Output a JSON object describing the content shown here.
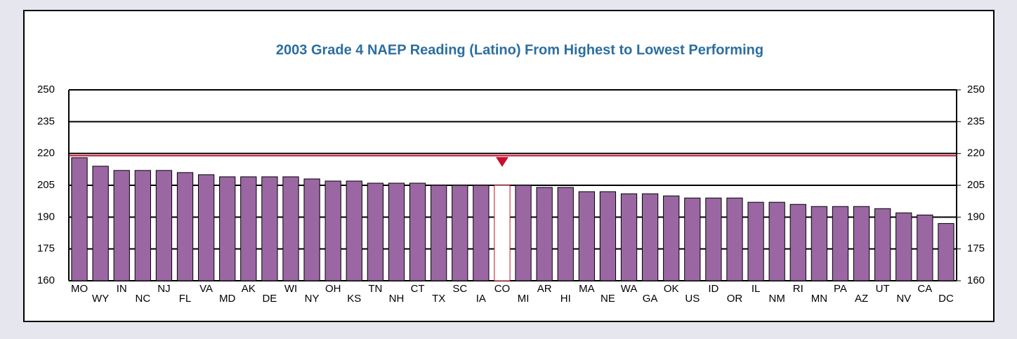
{
  "chart_data": {
    "type": "bar",
    "title": "2003 Grade 4 NAEP Reading (Latino) From Highest to Lowest Performing",
    "categories": [
      "MO",
      "WY",
      "IN",
      "NC",
      "NJ",
      "FL",
      "VA",
      "MD",
      "AK",
      "DE",
      "WI",
      "NY",
      "OH",
      "KS",
      "TN",
      "NH",
      "CT",
      "TX",
      "SC",
      "IA",
      "CO",
      "MI",
      "AR",
      "HI",
      "MA",
      "NE",
      "WA",
      "GA",
      "OK",
      "US",
      "ID",
      "OR",
      "IL",
      "NM",
      "RI",
      "MN",
      "PA",
      "AZ",
      "UT",
      "NV",
      "CA",
      "DC"
    ],
    "values": [
      218,
      214,
      212,
      212,
      212,
      211,
      210,
      209,
      209,
      209,
      209,
      208,
      207,
      207,
      206,
      206,
      206,
      205,
      205,
      205,
      205,
      205,
      204,
      204,
      202,
      202,
      201,
      201,
      200,
      199,
      199,
      199,
      197,
      197,
      196,
      195,
      195,
      195,
      194,
      192,
      191,
      187
    ],
    "color": "#9a67a3",
    "highlight_index": 20,
    "highlight_color": "#c8102e",
    "reference_value": 219,
    "reference_color": "#c8102e",
    "ylim": [
      160,
      250
    ],
    "yticks": [
      160,
      175,
      190,
      205,
      220,
      235,
      250
    ],
    "y2lim": [
      160,
      250
    ],
    "y2ticks": [
      160,
      175,
      190,
      205,
      220,
      235,
      250
    ],
    "grid": true
  }
}
